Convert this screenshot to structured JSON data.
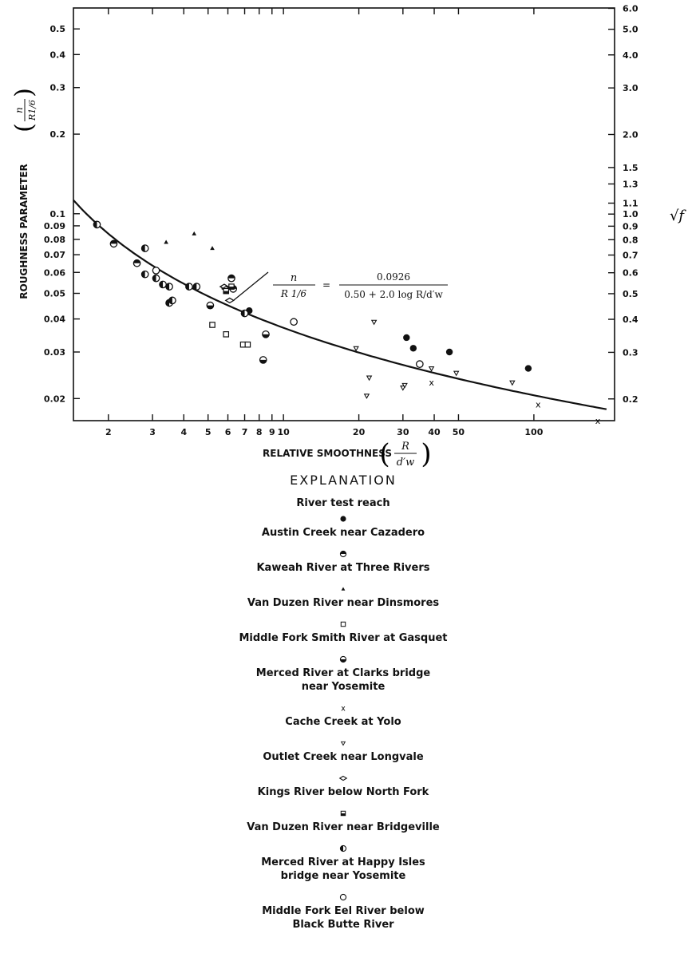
{
  "chart_data": {
    "type": "scatter",
    "x_scale": "log",
    "y_scale": "log",
    "xlim": [
      1.45,
      210
    ],
    "ylim": [
      0.0165,
      0.6
    ],
    "x_ticks": [
      2,
      3,
      4,
      5,
      6,
      7,
      8,
      9,
      10,
      20,
      30,
      40,
      50,
      100
    ],
    "y_ticks": [
      0.02,
      0.03,
      0.04,
      0.05,
      0.06,
      0.07,
      0.08,
      0.09,
      0.1,
      0.2,
      0.3,
      0.4,
      0.5
    ],
    "y_tick_labels": [
      "0.02",
      "0.03",
      "0.04",
      "0.05",
      "0.06",
      "0.07",
      "0.08",
      "0.09",
      "0.1",
      "0.2",
      "0.3",
      "0.4",
      "0.5"
    ],
    "right_ticks": [
      "0.2",
      "0.3",
      "0.4",
      "0.5",
      "0.6",
      "0.7",
      "0.8",
      "0.9",
      "1.0",
      "1.1",
      "1.3",
      "1.5",
      "2.0",
      "3.0",
      "4.0",
      "5.0",
      "6.0"
    ],
    "xlabel": "RELATIVE SMOOTHNESS",
    "xlabel_fraction": {
      "num": "R",
      "den": "d′w"
    },
    "ylabel": "ROUGHNESS PARAMETER",
    "ylabel_fraction": {
      "num": "n",
      "den": "R1/6"
    },
    "right_axis_label": "√f",
    "equation": {
      "lhs_num": "n",
      "lhs_den": "R 1/6",
      "equals": "=",
      "rhs_num": "0.0926",
      "rhs_den": "0.50 + 2.0 log R/d′w"
    },
    "curve": {
      "a": 0.0926,
      "b": 0.5,
      "c": 2.0,
      "x_range": [
        1.45,
        195
      ]
    },
    "series": [
      {
        "name": "Austin Creek near Cazadero",
        "symbol": "filled-circle",
        "points": [
          [
            7.3,
            0.043
          ],
          [
            31,
            0.034
          ],
          [
            33,
            0.031
          ],
          [
            46,
            0.03
          ],
          [
            95,
            0.026
          ]
        ]
      },
      {
        "name": "Kaweah River at Three Rivers",
        "symbol": "circle-top-half",
        "points": [
          [
            2.1,
            0.077
          ],
          [
            2.6,
            0.065
          ],
          [
            6.2,
            0.057
          ],
          [
            6.3,
            0.052
          ]
        ]
      },
      {
        "name": "Van Duzen River near Dinsmores",
        "symbol": "small-triangle",
        "points": [
          [
            3.4,
            0.078
          ],
          [
            4.4,
            0.084
          ],
          [
            5.2,
            0.074
          ]
        ]
      },
      {
        "name": "Middle Fork Smith River at Gasquet",
        "symbol": "open-square",
        "points": [
          [
            5.2,
            0.038
          ],
          [
            5.9,
            0.035
          ],
          [
            6.9,
            0.032
          ],
          [
            7.2,
            0.032
          ]
        ]
      },
      {
        "name": "Merced River at Clarks bridge near Yosemite",
        "symbol": "circle-bottom-half",
        "points": [
          [
            8.3,
            0.028
          ],
          [
            8.5,
            0.035
          ],
          [
            5.1,
            0.045
          ]
        ]
      },
      {
        "name": "Cache Creek at Yolo",
        "symbol": "x-mark",
        "points": [
          [
            39,
            0.023
          ],
          [
            104,
            0.019
          ],
          [
            180,
            0.0165
          ]
        ]
      },
      {
        "name": "Outlet Creek near Longvale",
        "symbol": "small-inverted-triangle",
        "points": [
          [
            19.5,
            0.031
          ],
          [
            21.5,
            0.0205
          ],
          [
            22,
            0.024
          ],
          [
            23,
            0.039
          ],
          [
            30,
            0.022
          ],
          [
            30.5,
            0.0225
          ],
          [
            39,
            0.026
          ],
          [
            49,
            0.025
          ],
          [
            82,
            0.023
          ]
        ]
      },
      {
        "name": "Kings River below North Fork",
        "symbol": "open-diamond",
        "points": [
          [
            5.8,
            0.053
          ],
          [
            5.9,
            0.052
          ],
          [
            6.1,
            0.047
          ]
        ]
      },
      {
        "name": "Van Duzen River near Bridgeville",
        "symbol": "square-bottom-half",
        "points": [
          [
            5.9,
            0.051
          ],
          [
            6.2,
            0.053
          ]
        ]
      },
      {
        "name": "Merced River at Happy Isles bridge near Yosemite",
        "symbol": "circle-left-half",
        "points": [
          [
            1.8,
            0.091
          ],
          [
            2.8,
            0.074
          ],
          [
            2.8,
            0.059
          ],
          [
            3.1,
            0.057
          ],
          [
            3.3,
            0.054
          ],
          [
            3.5,
            0.053
          ],
          [
            3.5,
            0.046
          ],
          [
            3.6,
            0.047
          ],
          [
            4.2,
            0.053
          ],
          [
            4.5,
            0.053
          ],
          [
            7.0,
            0.042
          ]
        ]
      },
      {
        "name": "Middle Fork Eel River below Black Butte River",
        "symbol": "open-circle",
        "points": [
          [
            3.1,
            0.061
          ],
          [
            11,
            0.039
          ],
          [
            35,
            0.027
          ]
        ]
      }
    ]
  },
  "legend": {
    "title": "EXPLANATION",
    "header": "River test reach",
    "entries": [
      {
        "symbol": "filled-circle",
        "label": "Austin Creek near Cazadero"
      },
      {
        "symbol": "circle-top-half",
        "label": "Kaweah River at Three Rivers"
      },
      {
        "symbol": "small-triangle",
        "label": "Van Duzen River near Dinsmores"
      },
      {
        "symbol": "open-square",
        "label": "Middle Fork Smith River at Gasquet"
      },
      {
        "symbol": "circle-bottom-half",
        "label": "Merced River at Clarks bridge\nnear Yosemite"
      },
      {
        "symbol": "x-mark",
        "label": "Cache Creek at Yolo"
      },
      {
        "symbol": "small-inverted-triangle",
        "label": "Outlet Creek near Longvale"
      },
      {
        "symbol": "open-diamond",
        "label": "Kings River below North Fork"
      },
      {
        "symbol": "square-bottom-half",
        "label": "Van Duzen River near Bridgeville"
      },
      {
        "symbol": "circle-left-half",
        "label": "Merced River at Happy Isles\nbridge near Yosemite"
      },
      {
        "symbol": "open-circle",
        "label": "Middle Fork Eel River below\nBlack Butte River"
      }
    ]
  }
}
